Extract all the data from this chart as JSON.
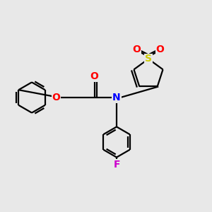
{
  "bg_color": "#e8e8e8",
  "bond_color": "black",
  "bond_width": 1.6,
  "atom_colors": {
    "O": "#ff0000",
    "N": "#0000ff",
    "S": "#cccc00",
    "F": "#cc00cc",
    "C": "black"
  },
  "font_size": 10,
  "fig_size": [
    3.0,
    3.0
  ],
  "dpi": 100
}
